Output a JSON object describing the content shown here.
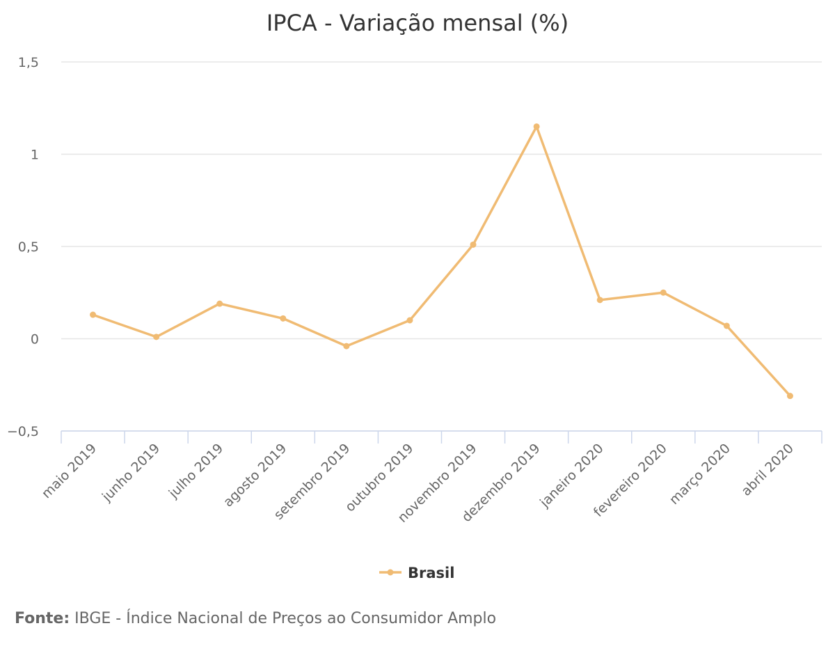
{
  "chart_data": {
    "type": "line",
    "title": "IPCA - Variação mensal (%)",
    "categories": [
      "maio 2019",
      "junho 2019",
      "julho 2019",
      "agosto 2019",
      "setembro 2019",
      "outubro 2019",
      "novembro 2019",
      "dezembro 2019",
      "janeiro 2020",
      "fevereiro 2020",
      "março 2020",
      "abril 2020"
    ],
    "series": [
      {
        "name": "Brasil",
        "values": [
          0.13,
          0.01,
          0.19,
          0.11,
          -0.04,
          0.1,
          0.51,
          1.15,
          0.21,
          0.25,
          0.07,
          -0.31
        ],
        "color": "#F0BB73"
      }
    ],
    "yticks": [
      {
        "value": 1.5,
        "label": "1,5"
      },
      {
        "value": 1,
        "label": "1"
      },
      {
        "value": 0.5,
        "label": "0,5"
      },
      {
        "value": 0,
        "label": "0"
      },
      {
        "value": -0.5,
        "label": "−0,5"
      }
    ],
    "ylim": [
      -0.5,
      1.5
    ],
    "grid": true,
    "legend_position": "bottom-center"
  },
  "source": {
    "label": "Fonte:",
    "text": " IBGE - Índice Nacional de Preços ao Consumidor Amplo"
  },
  "colors": {
    "grid": "#E6E6E6",
    "axis": "#CCD6EB",
    "series": "#F0BB73"
  }
}
